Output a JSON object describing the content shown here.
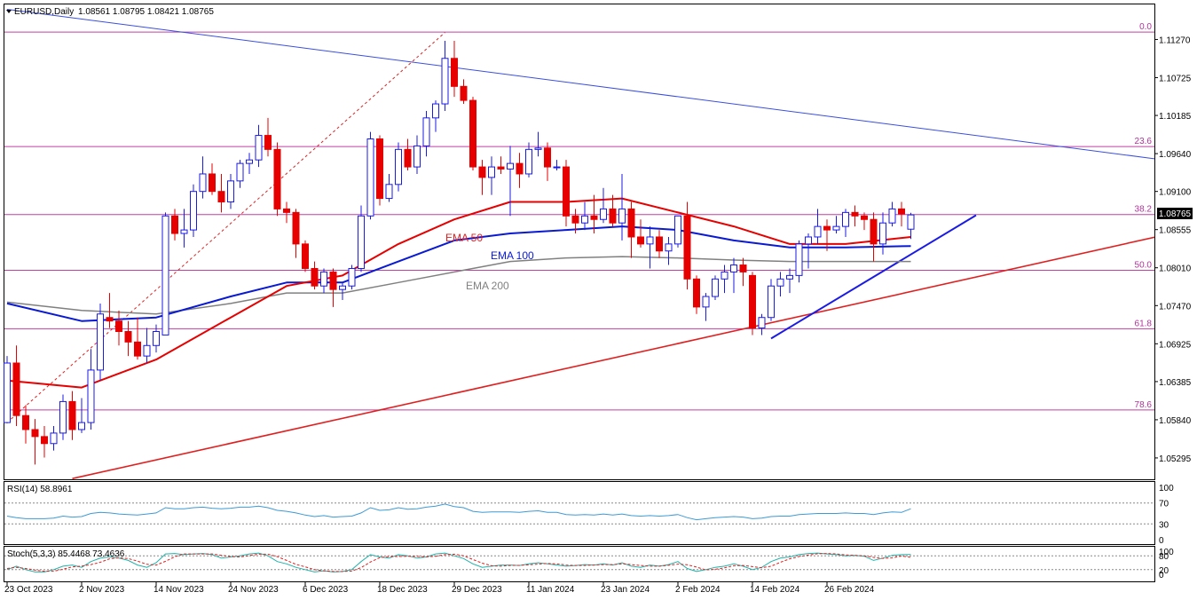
{
  "header": {
    "symbol": "EURUSD,Daily",
    "ohlc": "1.08561 1.08795 1.08421 1.08765",
    "rsi_label": "RSI(14) 58.8961",
    "stoch_label": "Stoch(5,3,3) 85.4468 73.4636",
    "current_price": "1.08765"
  },
  "colors": {
    "bull_candle": "#1a1ae6",
    "bear_candle": "#e60000",
    "ema50": "#e60000",
    "ema100": "#0a1ad2",
    "ema200": "#808080",
    "fib": "#c040a0",
    "downtrend": "#3a4ee0",
    "uptrend_red": "#e02020",
    "uptrend_blue": "#1a1ae6",
    "rsi": "#3d9ad6"
  },
  "chart_data": [
    {
      "type": "candlestick",
      "name": "price",
      "y_ticks": [
        "1.11270",
        "1.10725",
        "1.10185",
        "1.09640",
        "1.09100",
        "1.08555",
        "1.08010",
        "1.07470",
        "1.06925",
        "1.06385",
        "1.05840",
        "1.05295"
      ],
      "ylim": [
        1.0499,
        1.1177
      ],
      "x_tick_labels": [
        "23 Oct 2023",
        "2 Nov 2023",
        "14 Nov 2023",
        "24 Nov 2023",
        "6 Dec 2023",
        "18 Dec 2023",
        "29 Dec 2023",
        "11 Jan 2024",
        "23 Jan 2024",
        "2 Feb 2024",
        "14 Feb 2024",
        "26 Feb 2024"
      ],
      "x_tick_index": [
        0,
        8,
        16,
        24,
        32,
        40,
        48,
        56,
        64,
        72,
        80,
        88
      ],
      "candles": [
        [
          1.058,
          1.0675,
          1.0579,
          1.0665
        ],
        [
          1.0665,
          1.069,
          1.0575,
          1.059
        ],
        [
          1.059,
          1.0605,
          1.055,
          1.057
        ],
        [
          1.057,
          1.0585,
          1.052,
          1.056
        ],
        [
          1.056,
          1.0575,
          1.053,
          1.055
        ],
        [
          1.055,
          1.0575,
          1.054,
          1.0565
        ],
        [
          1.0565,
          1.062,
          1.0555,
          1.061
        ],
        [
          1.061,
          1.0625,
          1.0555,
          1.057
        ],
        [
          1.057,
          1.0615,
          1.0565,
          1.058
        ],
        [
          1.058,
          1.0685,
          1.057,
          1.0655
        ],
        [
          1.0655,
          1.075,
          1.064,
          1.0735
        ],
        [
          1.073,
          1.0765,
          1.0715,
          1.0725
        ],
        [
          1.0725,
          1.074,
          1.069,
          1.071
        ],
        [
          1.071,
          1.0725,
          1.0675,
          1.0695
        ],
        [
          1.0695,
          1.073,
          1.067,
          1.0675
        ],
        [
          1.0675,
          1.0715,
          1.0665,
          1.069
        ],
        [
          1.069,
          1.072,
          1.068,
          1.071
        ],
        [
          1.0705,
          1.088,
          1.0705,
          1.0875
        ],
        [
          1.0875,
          1.0885,
          1.084,
          1.085
        ],
        [
          1.085,
          1.0885,
          1.083,
          1.0855
        ],
        [
          1.0855,
          1.092,
          1.0845,
          1.091
        ],
        [
          1.091,
          1.096,
          1.09,
          1.0935
        ],
        [
          1.0935,
          1.095,
          1.0905,
          1.091
        ],
        [
          1.091,
          1.0935,
          1.088,
          1.0895
        ],
        [
          1.0895,
          1.0935,
          1.0885,
          1.0925
        ],
        [
          1.0925,
          1.0955,
          1.0915,
          1.095
        ],
        [
          1.095,
          1.0965,
          1.0935,
          1.0955
        ],
        [
          1.0955,
          1.1005,
          1.0945,
          1.099
        ],
        [
          1.099,
          1.1015,
          1.096,
          1.097
        ],
        [
          1.097,
          1.098,
          1.0875,
          1.0885
        ],
        [
          1.0885,
          1.0895,
          1.0865,
          1.088
        ],
        [
          1.088,
          1.0885,
          1.0815,
          1.0835
        ],
        [
          1.0835,
          1.084,
          1.0795,
          1.08
        ],
        [
          1.08,
          1.081,
          1.077,
          1.0775
        ],
        [
          1.0775,
          1.08,
          1.0765,
          1.0795
        ],
        [
          1.0795,
          1.08,
          1.0745,
          1.077
        ],
        [
          1.077,
          1.078,
          1.0755,
          1.0775
        ],
        [
          1.0775,
          1.0805,
          1.077,
          1.08
        ],
        [
          1.08,
          1.089,
          1.0795,
          1.0875
        ],
        [
          1.0875,
          1.0995,
          1.087,
          1.0985
        ],
        [
          1.0985,
          1.099,
          1.089,
          1.09
        ],
        [
          1.09,
          1.0935,
          1.0895,
          1.092
        ],
        [
          1.092,
          1.098,
          1.091,
          1.097
        ],
        [
          1.097,
          1.0985,
          1.094,
          1.0945
        ],
        [
          1.0945,
          1.099,
          1.0935,
          1.0975
        ],
        [
          1.0975,
          1.1025,
          1.096,
          1.1015
        ],
        [
          1.1015,
          1.104,
          1.0995,
          1.1035
        ],
        [
          1.1035,
          1.1125,
          1.1025,
          1.11
        ],
        [
          1.11,
          1.1125,
          1.1045,
          1.106
        ],
        [
          1.106,
          1.107,
          1.1035,
          1.104
        ],
        [
          1.104,
          1.1045,
          1.094,
          1.0945
        ],
        [
          1.0945,
          1.0955,
          1.0905,
          1.093
        ],
        [
          1.093,
          1.096,
          1.0905,
          1.0945
        ],
        [
          1.0945,
          1.096,
          1.0935,
          1.0942
        ],
        [
          1.0942,
          1.0975,
          1.0875,
          1.095
        ],
        [
          1.095,
          1.0965,
          1.0915,
          1.0935
        ],
        [
          1.0935,
          1.098,
          1.093,
          1.097
        ],
        [
          1.097,
          1.0995,
          1.096,
          1.0972
        ],
        [
          1.0972,
          1.098,
          1.0925,
          1.0945
        ],
        [
          1.0945,
          1.0955,
          1.094,
          1.0945
        ],
        [
          1.0945,
          1.0955,
          1.086,
          1.0875
        ],
        [
          1.0875,
          1.0885,
          1.085,
          1.0865
        ],
        [
          1.0865,
          1.0895,
          1.0855,
          1.0875
        ],
        [
          1.0875,
          1.0905,
          1.085,
          1.087
        ],
        [
          1.087,
          1.0915,
          1.0865,
          1.0885
        ],
        [
          1.0885,
          1.0905,
          1.086,
          1.0865
        ],
        [
          1.0865,
          1.0935,
          1.084,
          1.0885
        ],
        [
          1.0885,
          1.0895,
          1.0815,
          1.0845
        ],
        [
          1.0845,
          1.087,
          1.083,
          1.0835
        ],
        [
          1.0835,
          1.086,
          1.08,
          1.0845
        ],
        [
          1.0845,
          1.0855,
          1.0815,
          1.0825
        ],
        [
          1.0825,
          1.0845,
          1.0805,
          1.0835
        ],
        [
          1.0835,
          1.0875,
          1.083,
          1.0875
        ],
        [
          1.0875,
          1.0895,
          1.077,
          1.0785
        ],
        [
          1.0785,
          1.079,
          1.0735,
          1.0745
        ],
        [
          1.0745,
          1.0765,
          1.0725,
          1.076
        ],
        [
          1.076,
          1.079,
          1.0755,
          1.0785
        ],
        [
          1.0785,
          1.0805,
          1.0765,
          1.0795
        ],
        [
          1.0795,
          1.0815,
          1.0765,
          1.0805
        ],
        [
          1.0805,
          1.0815,
          1.0775,
          1.0795
        ],
        [
          1.079,
          1.0795,
          1.0705,
          1.0715
        ],
        [
          1.0715,
          1.0735,
          1.0705,
          1.073
        ],
        [
          1.073,
          1.0785,
          1.0725,
          1.0775
        ],
        [
          1.0775,
          1.0795,
          1.076,
          1.0785
        ],
        [
          1.0785,
          1.08,
          1.0765,
          1.079
        ],
        [
          1.079,
          1.084,
          1.078,
          1.0835
        ],
        [
          1.0835,
          1.085,
          1.08,
          1.0845
        ],
        [
          1.0845,
          1.0885,
          1.0835,
          1.086
        ],
        [
          1.086,
          1.087,
          1.0825,
          1.0855
        ],
        [
          1.0855,
          1.0875,
          1.085,
          1.086
        ],
        [
          1.086,
          1.0885,
          1.0845,
          1.088
        ],
        [
          1.088,
          1.089,
          1.086,
          1.0875
        ],
        [
          1.0875,
          1.088,
          1.0855,
          1.087
        ],
        [
          1.087,
          1.088,
          1.081,
          1.0835
        ],
        [
          1.0835,
          1.088,
          1.082,
          1.0865
        ],
        [
          1.0865,
          1.0895,
          1.086,
          1.0885
        ],
        [
          1.0885,
          1.0895,
          1.086,
          1.0878
        ],
        [
          1.08561,
          1.08795,
          1.08421,
          1.08765
        ]
      ],
      "fib_levels": [
        {
          "label": "0.0",
          "price": 1.11375
        },
        {
          "label": "23.6",
          "price": 1.0974
        },
        {
          "label": "38.2",
          "price": 1.0877
        },
        {
          "label": "50.0",
          "price": 1.07975
        },
        {
          "label": "61.8",
          "price": 1.0714
        },
        {
          "label": "78.6",
          "price": 1.0598
        }
      ],
      "ema_labels": {
        "ema50": "EMA 50",
        "ema100": "EMA 100",
        "ema200": "EMA 200"
      },
      "ema50": [
        [
          0,
          1.064
        ],
        [
          8,
          1.063
        ],
        [
          16,
          1.067
        ],
        [
          24,
          1.073
        ],
        [
          30,
          1.0775
        ],
        [
          36,
          1.079
        ],
        [
          42,
          1.0835
        ],
        [
          48,
          1.087
        ],
        [
          54,
          1.0895
        ],
        [
          60,
          1.0895
        ],
        [
          66,
          1.09
        ],
        [
          72,
          1.088
        ],
        [
          78,
          1.086
        ],
        [
          84,
          1.0835
        ],
        [
          90,
          1.0835
        ],
        [
          97,
          1.0845
        ]
      ],
      "ema100": [
        [
          0,
          1.075
        ],
        [
          8,
          1.0725
        ],
        [
          16,
          1.073
        ],
        [
          24,
          1.076
        ],
        [
          30,
          1.078
        ],
        [
          36,
          1.078
        ],
        [
          42,
          1.081
        ],
        [
          48,
          1.084
        ],
        [
          54,
          1.085
        ],
        [
          60,
          1.0855
        ],
        [
          66,
          1.086
        ],
        [
          72,
          1.0855
        ],
        [
          78,
          1.084
        ],
        [
          84,
          1.083
        ],
        [
          90,
          1.083
        ],
        [
          97,
          1.0832
        ]
      ],
      "ema200": [
        [
          0,
          1.0752
        ],
        [
          8,
          1.074
        ],
        [
          16,
          1.0735
        ],
        [
          24,
          1.075
        ],
        [
          30,
          1.0765
        ],
        [
          36,
          1.0765
        ],
        [
          42,
          1.078
        ],
        [
          48,
          1.0795
        ],
        [
          54,
          1.081
        ],
        [
          60,
          1.0815
        ],
        [
          66,
          1.0817
        ],
        [
          72,
          1.0815
        ],
        [
          78,
          1.0812
        ],
        [
          84,
          1.081
        ],
        [
          90,
          1.081
        ],
        [
          97,
          1.081
        ]
      ],
      "trendlines": [
        {
          "name": "downtrend",
          "points": [
            [
              0,
              1.117
            ],
            [
              127,
              1.095
            ]
          ]
        },
        {
          "name": "uptrend_long",
          "points": [
            [
              7,
              1.05
            ],
            [
              127,
              1.0856
            ]
          ]
        },
        {
          "name": "uptrend_short",
          "points": [
            [
              82,
              1.07
            ],
            [
              104,
              1.0876
            ]
          ]
        },
        {
          "name": "fib_diagonal",
          "points": [
            [
              0,
              1.058
            ],
            [
              47,
              1.1137
            ]
          ]
        }
      ]
    },
    {
      "type": "line",
      "name": "RSI(14)",
      "y_ticks": [
        "100",
        "70",
        "30",
        "0"
      ],
      "ylim": [
        0,
        100
      ],
      "levels": [
        70,
        30
      ],
      "values": [
        45,
        42,
        40,
        40,
        40,
        41,
        45,
        43,
        44,
        50,
        52,
        51,
        49,
        48,
        47,
        49,
        51,
        61,
        59,
        59,
        61,
        62,
        60,
        59,
        60,
        62,
        62,
        64,
        61,
        56,
        54,
        51,
        47,
        44,
        46,
        43,
        44,
        45,
        51,
        61,
        56,
        57,
        61,
        58,
        59,
        62,
        64,
        68,
        63,
        61,
        54,
        52,
        53,
        53,
        53,
        52,
        54,
        55,
        52,
        52,
        48,
        47,
        48,
        47,
        49,
        47,
        49,
        46,
        45,
        46,
        45,
        46,
        48,
        42,
        38,
        40,
        42,
        43,
        44,
        43,
        40,
        41,
        44,
        45,
        45,
        48,
        49,
        50,
        50,
        50,
        51,
        50,
        50,
        48,
        51,
        53,
        52,
        59
      ]
    },
    {
      "type": "line",
      "name": "Stoch(5,3,3)",
      "y_ticks": [
        "100",
        "80",
        "20",
        "0"
      ],
      "ylim": [
        0,
        100
      ],
      "levels": [
        80,
        20
      ],
      "main": [
        20,
        35,
        20,
        10,
        10,
        20,
        35,
        40,
        30,
        55,
        70,
        75,
        70,
        60,
        40,
        30,
        50,
        88,
        90,
        85,
        88,
        90,
        85,
        70,
        75,
        80,
        88,
        92,
        80,
        55,
        45,
        30,
        20,
        10,
        15,
        10,
        12,
        20,
        55,
        85,
        75,
        70,
        85,
        80,
        70,
        75,
        88,
        92,
        80,
        68,
        45,
        30,
        35,
        40,
        40,
        38,
        45,
        50,
        45,
        40,
        35,
        38,
        42,
        40,
        45,
        40,
        50,
        35,
        30,
        40,
        35,
        42,
        55,
        25,
        12,
        20,
        30,
        35,
        45,
        35,
        20,
        30,
        55,
        70,
        75,
        85,
        90,
        92,
        88,
        85,
        80,
        82,
        78,
        60,
        70,
        82,
        85,
        85.4468
      ],
      "signal": [
        25,
        30,
        25,
        18,
        13,
        13,
        22,
        32,
        35,
        42,
        52,
        67,
        72,
        68,
        57,
        43,
        40,
        56,
        76,
        88,
        88,
        88,
        88,
        82,
        77,
        75,
        81,
        87,
        87,
        76,
        60,
        43,
        32,
        20,
        15,
        12,
        12,
        14,
        29,
        53,
        72,
        77,
        77,
        78,
        78,
        75,
        78,
        85,
        87,
        80,
        64,
        48,
        37,
        35,
        38,
        39,
        41,
        44,
        47,
        45,
        40,
        38,
        38,
        40,
        42,
        42,
        45,
        42,
        38,
        35,
        35,
        39,
        44,
        41,
        31,
        19,
        21,
        28,
        37,
        38,
        33,
        28,
        35,
        52,
        67,
        77,
        83,
        89,
        90,
        88,
        84,
        82,
        80,
        73,
        69,
        71,
        79,
        73.4636
      ]
    }
  ]
}
